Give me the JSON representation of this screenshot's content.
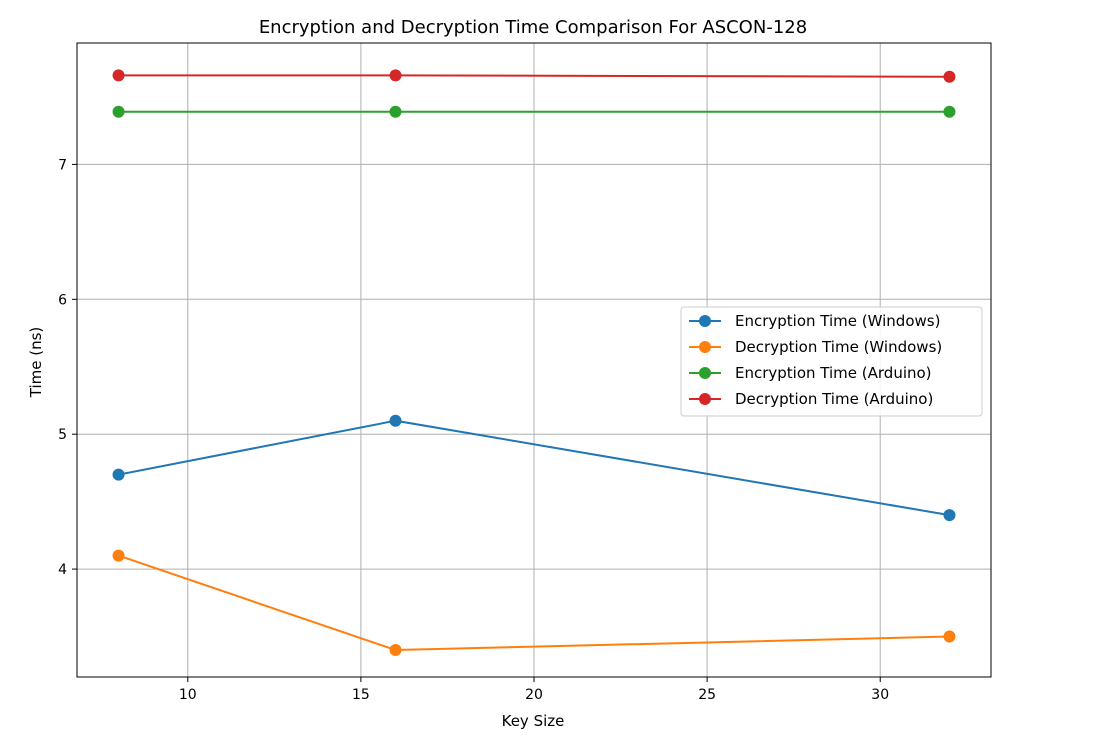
{
  "chart_data": {
    "type": "line",
    "title": "Encryption and Decryption Time Comparison For ASCON-128",
    "xlabel": "Key Size",
    "ylabel": "Time (ns)",
    "x": [
      8,
      16,
      32
    ],
    "xlim": [
      6.8,
      33.2
    ],
    "ylim": [
      3.2,
      7.9
    ],
    "xticks": [
      10,
      15,
      20,
      25,
      30
    ],
    "yticks": [
      4,
      5,
      6,
      7
    ],
    "grid": true,
    "legend_position": "center-right",
    "series": [
      {
        "name": "Encryption Time (Windows)",
        "color": "#1f77b4",
        "values": [
          4.7,
          5.1,
          4.4
        ]
      },
      {
        "name": "Decryption Time (Windows)",
        "color": "#ff7f0e",
        "values": [
          4.1,
          3.4,
          3.5
        ]
      },
      {
        "name": "Encryption Time (Arduino)",
        "color": "#2ca02c",
        "values": [
          7.39,
          7.39,
          7.39
        ]
      },
      {
        "name": "Decryption Time (Arduino)",
        "color": "#d62728",
        "values": [
          7.66,
          7.66,
          7.65
        ]
      }
    ]
  }
}
